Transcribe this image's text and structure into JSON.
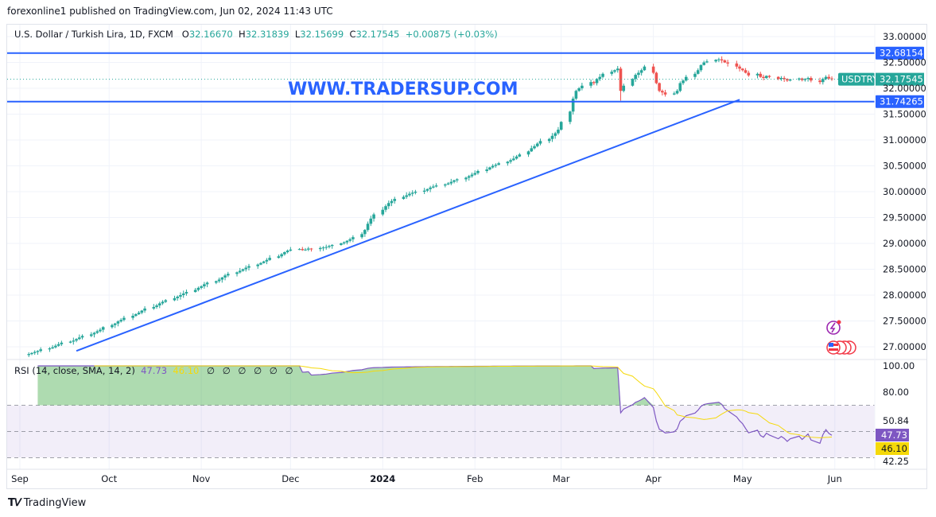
{
  "publisher_line": "forexonline1 published on TradingView.com, Jun 02, 2024 11:43 UTC",
  "symbol_title": "U.S. Dollar / Turkish Lira, 1D, FXCM",
  "ohlc": {
    "o_label": "O",
    "o": "32.16670",
    "h_label": "H",
    "h": "32.31839",
    "l_label": "L",
    "l": "32.15699",
    "c_label": "C",
    "c": "32.17545",
    "change": "+0.00875 (+0.03%)"
  },
  "watermark": "WWW.TRADERSUP.COM",
  "rsi_legend": {
    "title": "RSI (14, close, SMA, 14, 2)",
    "rsi": "47.73",
    "sma": "46.10",
    "na": [
      "∅",
      "∅",
      "∅",
      "∅",
      "∅",
      "∅"
    ]
  },
  "footer_brand": "TradingView",
  "colors": {
    "up": "#26a69a",
    "down": "#ef5350",
    "lines": "#2962ff",
    "rsi": "#7e57c2",
    "rsi_sma": "#f5d90a",
    "watermark": "#2962ff"
  },
  "chart_data": [
    {
      "type": "candlestick",
      "symbol": "USDTRY",
      "start_date": "2023-09-04",
      "end_date": "2024-05-31",
      "ylim": [
        26.8,
        33.1
      ],
      "y_ticks": [
        "33.00000",
        "32.50000",
        "32.00000",
        "31.50000",
        "31.00000",
        "30.50000",
        "30.00000",
        "29.50000",
        "29.00000",
        "28.50000",
        "28.00000",
        "27.50000",
        "27.00000"
      ],
      "x_ticks": [
        "Sep",
        "Oct",
        "Nov",
        "Dec",
        "2024",
        "Feb",
        "Mar",
        "Apr",
        "May",
        "Jun"
      ],
      "closes": [
        26.86,
        26.88,
        26.9,
        26.92,
        26.95,
        26.97,
        26.99,
        27.02,
        27.05,
        27.08,
        27.1,
        27.12,
        27.15,
        27.18,
        27.21,
        27.24,
        27.27,
        27.3,
        27.33,
        27.38,
        27.42,
        27.45,
        27.49,
        27.52,
        27.56,
        27.6,
        27.63,
        27.66,
        27.7,
        27.74,
        27.77,
        27.8,
        27.84,
        27.87,
        27.9,
        27.94,
        27.97,
        28.0,
        28.03,
        28.06,
        28.1,
        28.14,
        28.17,
        28.21,
        28.24,
        28.27,
        28.3,
        28.34,
        28.38,
        28.41,
        28.44,
        28.47,
        28.5,
        28.53,
        28.56,
        28.59,
        28.62,
        28.65,
        28.68,
        28.72,
        28.75,
        28.79,
        28.83,
        28.86,
        28.88,
        28.89,
        28.87,
        28.88,
        28.9,
        28.89,
        28.91,
        28.92,
        28.93,
        28.95,
        28.97,
        29.0,
        29.02,
        29.05,
        29.08,
        29.12,
        29.18,
        29.26,
        29.38,
        29.48,
        29.56,
        29.65,
        29.72,
        29.78,
        29.82,
        29.86,
        29.9,
        29.93,
        29.96,
        29.98,
        30.0,
        30.02,
        30.05,
        30.08,
        30.1,
        30.12,
        30.14,
        30.16,
        30.19,
        30.22,
        30.24,
        30.27,
        30.3,
        30.33,
        30.36,
        30.4,
        30.43,
        30.47,
        30.5,
        30.52,
        30.55,
        30.58,
        30.61,
        30.64,
        30.68,
        30.72,
        30.78,
        30.84,
        30.88,
        30.93,
        30.98,
        31.02,
        31.08,
        31.13,
        31.2,
        31.35,
        31.55,
        31.8,
        31.95,
        32.0,
        32.05,
        32.12,
        32.1,
        32.18,
        32.22,
        32.28,
        32.32,
        32.35,
        32.38,
        31.95,
        32.05,
        32.18,
        32.26,
        32.3,
        32.35,
        32.42,
        32.3,
        32.1,
        31.95,
        31.92,
        31.88,
        31.9,
        31.95,
        32.1,
        32.15,
        32.22,
        32.28,
        32.35,
        32.45,
        32.5,
        32.52,
        32.55,
        32.56,
        32.54,
        32.5,
        32.48,
        32.42,
        32.38,
        32.35,
        32.3,
        32.25,
        32.28,
        32.22,
        32.2,
        32.24,
        32.22,
        32.18,
        32.2,
        32.18,
        32.15,
        32.17,
        32.19,
        32.16,
        32.18,
        32.2,
        32.15,
        32.12,
        32.18,
        32.22,
        32.19,
        32.175
      ],
      "horizontal_levels": [
        {
          "value": 32.68154,
          "label": "32.68154"
        },
        {
          "value": 31.74265,
          "label": "31.74265"
        }
      ],
      "last_price": {
        "symbol": "USDTRY",
        "value": 32.17545,
        "label": "32.17545"
      },
      "trendline": {
        "from": {
          "date": "2023-09-20",
          "price": 26.92
        },
        "to": {
          "date": "2024-04-30",
          "price": 31.78
        }
      }
    },
    {
      "type": "line",
      "title": "RSI (14, close, SMA, 14, 2)",
      "ylim": [
        30,
        100
      ],
      "y_ticks": [
        "100.00",
        "80.00",
        "50.84",
        "42.25"
      ],
      "bands": {
        "upper": 70,
        "middle": 50,
        "lower": 30
      },
      "last_rsi": {
        "value": 47.73,
        "label": "47.73"
      },
      "last_sma": {
        "value": 46.1,
        "label": "46.10"
      }
    }
  ]
}
